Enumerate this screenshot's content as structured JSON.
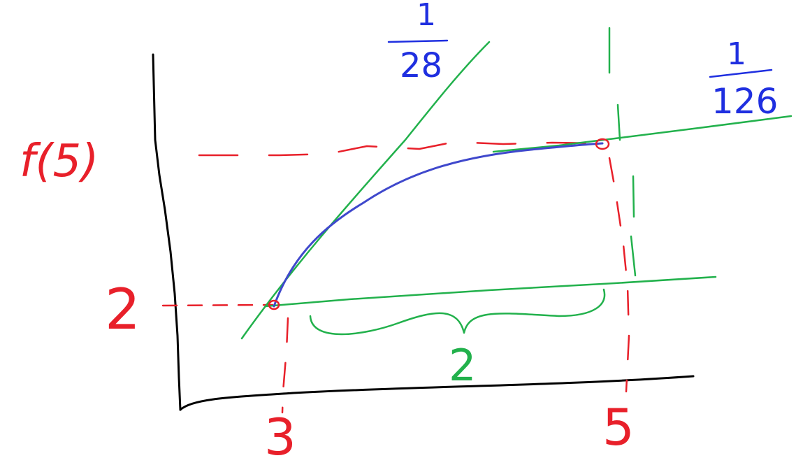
{
  "labels": {
    "y_top": "f(5)",
    "y_bottom": "2",
    "x_left": "3",
    "x_right": "5",
    "interval_width": "2"
  },
  "slopes": {
    "left_numerator": "1",
    "left_denominator": "28",
    "right_numerator": "1",
    "right_denominator": "126"
  },
  "colors": {
    "axes": "#000000",
    "guides": "#e8202a",
    "tangents": "#22b14c",
    "curve": "#3f48cc",
    "slope_text": "#1f2fe0"
  }
}
